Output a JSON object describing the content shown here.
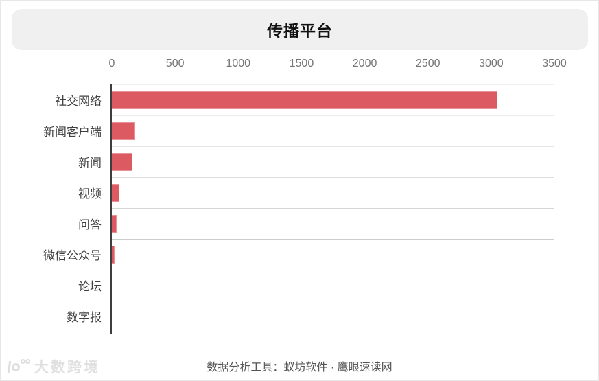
{
  "page": {
    "title": "传播平台",
    "footer_text": "数据分析工具：蚁坊软件 · 鹰眼速读网",
    "watermark_text": "大数跨境"
  },
  "chart_data": {
    "type": "bar",
    "orientation": "horizontal",
    "title": "传播平台",
    "categories": [
      "社交网络",
      "新闻客户端",
      "新闻",
      "视频",
      "问答",
      "微信公众号",
      "论坛",
      "数字报"
    ],
    "values": [
      3050,
      185,
      165,
      60,
      40,
      20,
      0,
      0
    ],
    "xlabel": "",
    "ylabel": "",
    "xlim": [
      0,
      3500
    ],
    "xticks": [
      0,
      500,
      1000,
      1500,
      2000,
      2500,
      3000,
      3500
    ],
    "bar_color": "#dc5a62",
    "grid": "row-separator-lines",
    "legend_position": "none"
  }
}
